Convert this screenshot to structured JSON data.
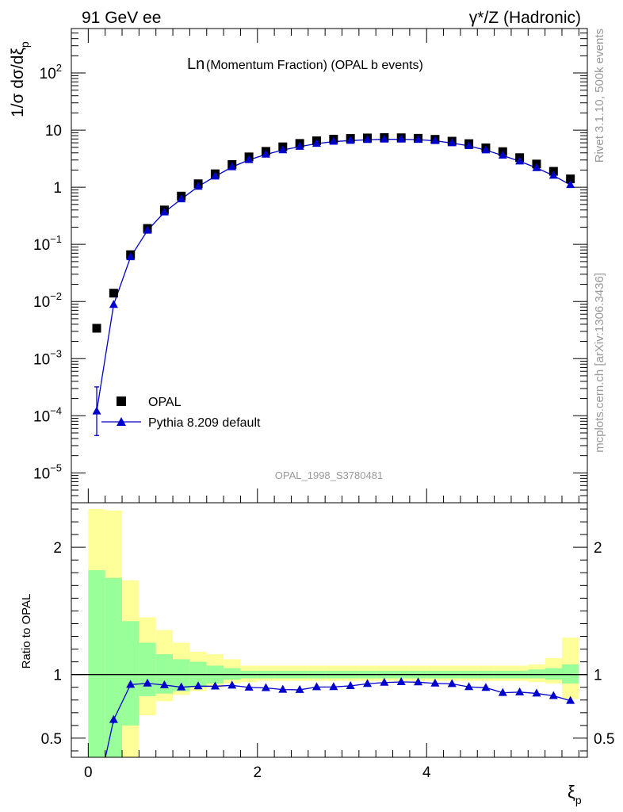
{
  "header": {
    "left": "91 GeV ee",
    "right": "γ*/Z (Hadronic)"
  },
  "side_text": {
    "top": "Rivet 3.1.10,  500k events",
    "bottom": "mcplots.cern.ch [arXiv:1306.3436]"
  },
  "watermark": "OPAL_1998_S3780481",
  "colors": {
    "data": "#000000",
    "mc": "#0000cc",
    "band_inner": "#99ff99",
    "band_outer": "#ffff99"
  },
  "chart_data": [
    {
      "type": "scatter",
      "title": "Ln(Momentum Fraction) (OPAL b events)",
      "title_main": "Ln",
      "title_rest": "(Momentum Fraction) (OPAL b events)",
      "ylabel": "1/σ dσ/dξ_p",
      "yscale": "log",
      "xlim": [
        -0.2,
        5.9
      ],
      "ylim": [
        3e-06,
        600
      ],
      "yticks": [
        {
          "v": 100,
          "b": "10",
          "s": "2"
        },
        {
          "v": 10,
          "b": "10",
          "s": ""
        },
        {
          "v": 1,
          "b": "1",
          "s": ""
        },
        {
          "v": 0.1,
          "b": "10",
          "s": "−1"
        },
        {
          "v": 0.01,
          "b": "10",
          "s": "−2"
        },
        {
          "v": 0.001,
          "b": "10",
          "s": "−3"
        },
        {
          "v": 0.0001,
          "b": "10",
          "s": "−4"
        },
        {
          "v": 1e-05,
          "b": "10",
          "s": "−5"
        }
      ],
      "legend_position": "bottom-left",
      "x": [
        0.1,
        0.3,
        0.5,
        0.7,
        0.9,
        1.1,
        1.3,
        1.5,
        1.7,
        1.9,
        2.1,
        2.3,
        2.5,
        2.7,
        2.9,
        3.1,
        3.3,
        3.5,
        3.7,
        3.9,
        4.1,
        4.3,
        4.5,
        4.7,
        4.9,
        5.1,
        5.3,
        5.5,
        5.7
      ],
      "series": [
        {
          "name": "OPAL",
          "marker": "square",
          "values": [
            0.0034,
            0.014,
            0.066,
            0.19,
            0.4,
            0.7,
            1.15,
            1.72,
            2.5,
            3.4,
            4.25,
            5.1,
            5.85,
            6.5,
            6.95,
            7.15,
            7.3,
            7.4,
            7.35,
            7.2,
            6.9,
            6.4,
            5.8,
            4.9,
            4.2,
            3.3,
            2.55,
            1.9,
            1.4
          ]
        },
        {
          "name": "Pythia 8.209 default",
          "marker": "triangle",
          "values": [
            0.00012,
            0.0088,
            0.06,
            0.175,
            0.365,
            0.62,
            1.03,
            1.55,
            2.26,
            3.01,
            3.76,
            4.48,
            5.15,
            5.8,
            6.3,
            6.55,
            6.78,
            6.9,
            6.9,
            6.8,
            6.5,
            5.95,
            5.3,
            4.45,
            3.6,
            2.85,
            2.18,
            1.6,
            1.1
          ],
          "err_low": [
            7.5e-05,
            0,
            0,
            0,
            0,
            0,
            0,
            0,
            0,
            0,
            0,
            0,
            0,
            0,
            0,
            0,
            0,
            0,
            0,
            0,
            0,
            0,
            0,
            0,
            0,
            0,
            0,
            0,
            0
          ],
          "err_high": [
            0.0002,
            0,
            0,
            0,
            0,
            0,
            0,
            0,
            0,
            0,
            0,
            0,
            0,
            0,
            0,
            0,
            0,
            0,
            0,
            0,
            0,
            0,
            0,
            0,
            0,
            0,
            0,
            0,
            0
          ]
        }
      ]
    },
    {
      "type": "line",
      "ylabel": "Ratio to OPAL",
      "xlabel": "ξ_p",
      "xlim": [
        -0.2,
        5.9
      ],
      "ylim": [
        0.35,
        2.35
      ],
      "xticks": [
        0,
        2,
        4
      ],
      "yticks": [
        0.5,
        1,
        2
      ],
      "bins": [
        0,
        0.2,
        0.4,
        0.6,
        0.8,
        1.0,
        1.2,
        1.4,
        1.6,
        1.8,
        2.0,
        2.2,
        2.4,
        2.6,
        2.8,
        3.0,
        3.2,
        3.4,
        3.6,
        3.8,
        4.0,
        4.2,
        4.4,
        4.6,
        4.8,
        5.0,
        5.2,
        5.4,
        5.6,
        5.8
      ],
      "band_inner": [
        [
          0.05,
          1.82
        ],
        [
          0.05,
          1.76
        ],
        [
          0.6,
          1.42
        ],
        [
          0.83,
          1.25
        ],
        [
          0.85,
          1.16
        ],
        [
          0.87,
          1.12
        ],
        [
          0.9,
          1.1
        ],
        [
          0.93,
          1.07
        ],
        [
          0.96,
          1.05
        ],
        [
          0.97,
          1.03
        ],
        [
          0.97,
          1.03
        ],
        [
          0.97,
          1.03
        ],
        [
          0.97,
          1.03
        ],
        [
          0.97,
          1.03
        ],
        [
          0.97,
          1.03
        ],
        [
          0.97,
          1.03
        ],
        [
          0.97,
          1.03
        ],
        [
          0.97,
          1.03
        ],
        [
          0.97,
          1.03
        ],
        [
          0.97,
          1.03
        ],
        [
          0.97,
          1.03
        ],
        [
          0.97,
          1.03
        ],
        [
          0.97,
          1.03
        ],
        [
          0.97,
          1.03
        ],
        [
          0.97,
          1.03
        ],
        [
          0.97,
          1.03
        ],
        [
          0.97,
          1.04
        ],
        [
          0.96,
          1.05
        ],
        [
          0.93,
          1.08
        ]
      ],
      "band_outer": [
        [
          0.05,
          2.3
        ],
        [
          0.05,
          2.29
        ],
        [
          0.05,
          1.74
        ],
        [
          0.68,
          1.45
        ],
        [
          0.79,
          1.35
        ],
        [
          0.84,
          1.25
        ],
        [
          0.87,
          1.18
        ],
        [
          0.9,
          1.16
        ],
        [
          0.93,
          1.12
        ],
        [
          0.94,
          1.07
        ],
        [
          0.95,
          1.07
        ],
        [
          0.95,
          1.07
        ],
        [
          0.95,
          1.07
        ],
        [
          0.95,
          1.07
        ],
        [
          0.95,
          1.07
        ],
        [
          0.95,
          1.07
        ],
        [
          0.95,
          1.07
        ],
        [
          0.95,
          1.07
        ],
        [
          0.95,
          1.07
        ],
        [
          0.95,
          1.07
        ],
        [
          0.95,
          1.07
        ],
        [
          0.95,
          1.07
        ],
        [
          0.95,
          1.07
        ],
        [
          0.95,
          1.07
        ],
        [
          0.95,
          1.07
        ],
        [
          0.95,
          1.07
        ],
        [
          0.94,
          1.08
        ],
        [
          0.93,
          1.13
        ],
        [
          0.81,
          1.29
        ]
      ],
      "x": [
        0.1,
        0.3,
        0.5,
        0.7,
        0.9,
        1.1,
        1.3,
        1.5,
        1.7,
        1.9,
        2.1,
        2.3,
        2.5,
        2.7,
        2.9,
        3.1,
        3.3,
        3.5,
        3.7,
        3.9,
        4.1,
        4.3,
        4.5,
        4.7,
        4.9,
        5.1,
        5.3,
        5.5,
        5.7
      ],
      "series": [
        {
          "name": "Pythia 8.209 default",
          "values": [
            0.035,
            0.645,
            0.921,
            0.931,
            0.918,
            0.901,
            0.909,
            0.908,
            0.915,
            0.899,
            0.895,
            0.882,
            0.88,
            0.902,
            0.903,
            0.911,
            0.928,
            0.937,
            0.942,
            0.94,
            0.931,
            0.927,
            0.903,
            0.897,
            0.857,
            0.862,
            0.852,
            0.833,
            0.795
          ],
          "err_low": [
            0,
            0.03,
            0,
            0,
            0,
            0,
            0,
            0,
            0,
            0,
            0,
            0,
            0,
            0,
            0,
            0,
            0,
            0,
            0,
            0,
            0,
            0,
            0,
            0,
            0,
            0,
            0,
            0,
            0
          ],
          "err_high": [
            0,
            0.03,
            0,
            0,
            0,
            0,
            0,
            0,
            0,
            0,
            0,
            0,
            0,
            0,
            0,
            0,
            0,
            0,
            0,
            0,
            0,
            0,
            0,
            0,
            0,
            0,
            0,
            0,
            0
          ]
        }
      ],
      "reference_line": 1
    }
  ]
}
